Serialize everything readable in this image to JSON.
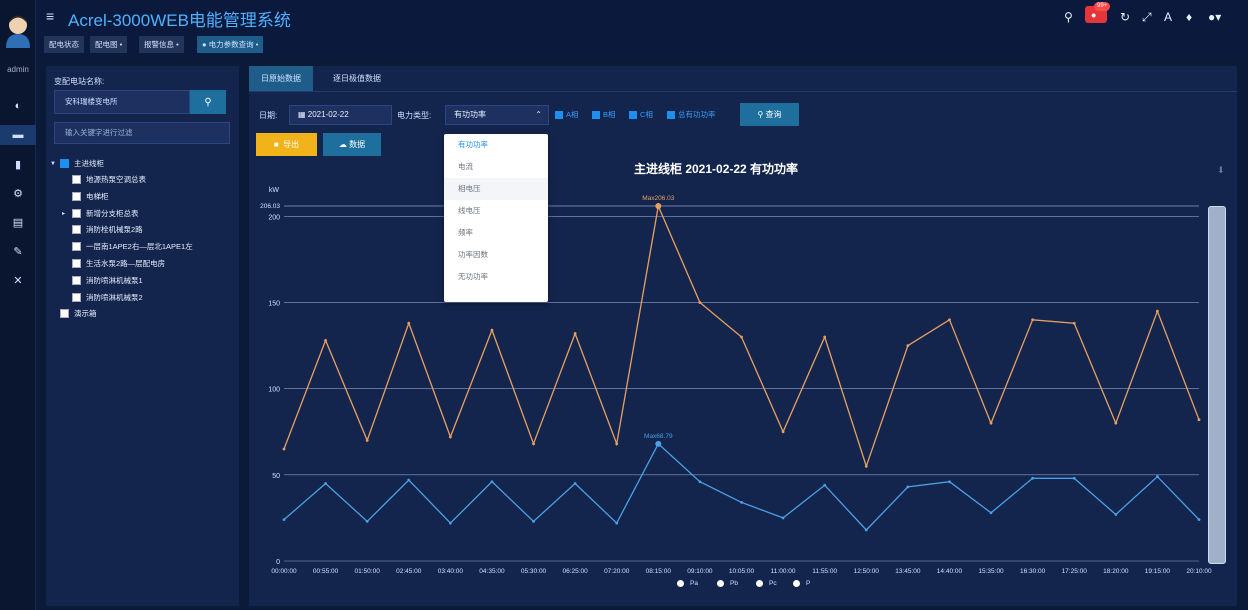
{
  "header": {
    "app_title": "Acrel-3000WEB电能管理系统",
    "badge": "99+"
  },
  "user": {
    "name": "admin"
  },
  "breadcrumbs": [
    "配电状态",
    "配电图",
    "报警信息",
    "电力参数查询"
  ],
  "station": {
    "label": "变配电站名称:",
    "value": "安科瑞楼变电所",
    "filter_placeholder": "输入关键字进行过滤"
  },
  "tree": [
    "主进线柜",
    "地源热泵空调总表",
    "电梯柜",
    "新增分支柜总表",
    "消防栓机械泵2路",
    "一层南1APE2右—层北1APE1左",
    "生活水泵2路—层配电房",
    "消防喷淋机械泵1",
    "消防喷淋机械泵2",
    "演示箱"
  ],
  "tabs": [
    "日原始数据",
    "逐日极值数据"
  ],
  "filters": {
    "date_label": "日期:",
    "date_value": "2021-02-22",
    "type_label": "电力类型:",
    "type_value": "有功功率",
    "phases": [
      "A相",
      "B相",
      "C相",
      "总有功功率"
    ],
    "query": "查询",
    "export": "导出",
    "data": "数据"
  },
  "dropdown": [
    "有功功率",
    "电流",
    "相电压",
    "线电压",
    "频率",
    "功率因数",
    "无功功率"
  ],
  "legend": [
    "Pa",
    "Pb",
    "Pc",
    "P"
  ],
  "chart_data": {
    "type": "line",
    "title": "主进线柜  2021-02-22  有功功率",
    "ylabel": "kW",
    "ylim": [
      0,
      206.03
    ],
    "yticks": [
      0,
      50,
      100,
      150,
      200
    ],
    "ymax_label": "206.03",
    "x": [
      "00:00:00",
      "00:55:00",
      "01:50:00",
      "02:45:00",
      "03:40:00",
      "04:35:00",
      "05:30:00",
      "06:25:00",
      "07:20:00",
      "08:15:00",
      "09:10:00",
      "10:05:00",
      "11:00:00",
      "11:55:00",
      "12:50:00",
      "13:45:00",
      "14:40:00",
      "15:35:00",
      "16:30:00",
      "17:25:00",
      "18:20:00",
      "19:15:00",
      "20:10:00"
    ],
    "series": [
      {
        "name": "P",
        "color": "#e8a060",
        "values": [
          65,
          128,
          70,
          138,
          72,
          134,
          68,
          132,
          68,
          206,
          150,
          130,
          75,
          130,
          55,
          125,
          140,
          80,
          140,
          138,
          80,
          145,
          82
        ],
        "max_label": "Max206.03"
      },
      {
        "name": "Pa",
        "color": "#4aa0e6",
        "values": [
          24,
          45,
          23,
          47,
          22,
          46,
          23,
          45,
          22,
          68,
          46,
          34,
          25,
          44,
          18,
          43,
          46,
          28,
          48,
          48,
          27,
          49,
          24
        ],
        "max_label": "Max68.79"
      }
    ]
  }
}
